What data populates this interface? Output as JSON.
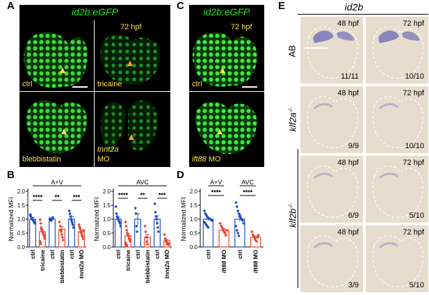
{
  "panels": {
    "A": {
      "label": "A",
      "header": "id2b:eGFP",
      "stage": "72 hpf",
      "tiles": [
        {
          "text": "ctrl",
          "italic": false
        },
        {
          "text": "tricaine",
          "italic": false
        },
        {
          "text": "blebbistatin",
          "italic": false
        },
        {
          "text": "tnnt2a",
          "italic": true,
          "suffix": "MO"
        }
      ]
    },
    "B": {
      "label": "B"
    },
    "C": {
      "label": "C",
      "header": "id2b:eGFP",
      "stage": "72 hpf",
      "tiles": [
        {
          "text": "ctrl",
          "italic": false
        },
        {
          "text": "ift88",
          "italic": true,
          "suffix": "MO"
        }
      ]
    },
    "D": {
      "label": "D"
    },
    "E": {
      "label": "E",
      "header": "id2b",
      "rows": [
        {
          "label": "AB",
          "cells": [
            {
              "stage": "48 hpf",
              "count": "11/11"
            },
            {
              "stage": "72 hpf",
              "count": "10/10"
            }
          ]
        },
        {
          "label": "klf2a",
          "sup": "-/-",
          "cells": [
            {
              "stage": "48 hpf",
              "count": "9/9"
            },
            {
              "stage": "72 hpf",
              "count": "10/10"
            }
          ]
        },
        {
          "label": "klf2b",
          "sup": "-/-",
          "cells": [
            {
              "stage": "48 hpf",
              "count": "6/9"
            },
            {
              "stage": "72 hpf",
              "count": "5/10"
            }
          ]
        },
        {
          "label": "",
          "cells": [
            {
              "stage": "48 hpf",
              "count": "3/9"
            },
            {
              "stage": "72 hpf",
              "count": "5/10"
            }
          ]
        }
      ]
    }
  },
  "chart_data": [
    {
      "type": "bar",
      "panel": "B",
      "title": "A+V",
      "ylabel": "Normalized MFI",
      "ylim": [
        0,
        2.0
      ],
      "yticks": [
        "0.0",
        "0.5",
        "1.0",
        "1.5",
        "2.0"
      ],
      "categories": [
        "ctrl",
        "tricaine",
        "ctrl",
        "blebbistatin",
        "ctrl",
        "tnnt2a MO"
      ],
      "values": [
        1.0,
        0.55,
        1.0,
        0.64,
        1.0,
        0.55
      ],
      "errors": [
        0.06,
        0.07,
        0.04,
        0.09,
        0.1,
        0.06
      ],
      "points": [
        [
          1.17,
          1.1,
          1.05,
          1.0,
          0.98,
          0.96,
          0.92,
          0.88,
          0.85,
          1.13
        ],
        [
          0.98,
          0.85,
          0.7,
          0.62,
          0.56,
          0.5,
          0.45,
          0.38,
          0.3,
          0.2,
          0.12,
          0.65
        ],
        [
          1.02,
          0.97,
          0.95,
          1.0,
          0.99,
          1.06
        ],
        [
          0.9,
          0.75,
          0.62,
          0.55,
          0.45,
          0.35,
          0.25
        ],
        [
          1.3,
          1.2,
          1.1,
          1.0,
          0.95,
          0.88,
          0.8,
          0.7
        ],
        [
          0.8,
          0.72,
          0.65,
          0.55,
          0.5,
          0.42,
          0.38,
          0.3,
          0.6
        ]
      ],
      "significance": [
        {
          "from": 0,
          "to": 1,
          "label": "****"
        },
        {
          "from": 2,
          "to": 3,
          "label": "**"
        },
        {
          "from": 4,
          "to": 5,
          "label": "***"
        }
      ],
      "colors": {
        "ctrl": "#1f4fbf",
        "treated": "#e8412f"
      }
    },
    {
      "type": "bar",
      "panel": "B",
      "title": "AVC",
      "ylabel": "Normalized MFI",
      "ylim": [
        0,
        2.0
      ],
      "yticks": [
        "0.0",
        "0.5",
        "1.0",
        "1.5",
        "2.0"
      ],
      "categories": [
        "ctrl",
        "tricaine",
        "ctrl",
        "blebbistatin",
        "ctrl",
        "tnnt2a MO"
      ],
      "values": [
        1.0,
        0.4,
        1.0,
        0.35,
        1.0,
        0.22
      ],
      "errors": [
        0.08,
        0.07,
        0.2,
        0.09,
        0.12,
        0.04
      ],
      "points": [
        [
          1.45,
          1.2,
          1.1,
          1.05,
          1.0,
          0.95,
          0.9,
          0.85,
          0.75
        ],
        [
          0.9,
          0.75,
          0.6,
          0.5,
          0.45,
          0.38,
          0.3,
          0.25,
          0.2,
          0.15,
          0.1,
          0.05
        ],
        [
          1.4,
          1.2,
          0.75,
          0.55
        ],
        [
          0.75,
          0.55,
          0.35,
          0.2,
          0.1
        ],
        [
          1.55,
          1.25,
          1.1,
          1.0,
          0.85,
          0.7,
          0.55
        ],
        [
          0.45,
          0.3,
          0.25,
          0.2,
          0.15,
          0.1,
          0.08,
          0.12
        ]
      ],
      "significance": [
        {
          "from": 0,
          "to": 1,
          "label": "****"
        },
        {
          "from": 2,
          "to": 3,
          "label": "**"
        },
        {
          "from": 4,
          "to": 5,
          "label": "***"
        }
      ],
      "colors": {
        "ctrl": "#1f4fbf",
        "treated": "#e8412f"
      }
    },
    {
      "type": "bar",
      "panel": "D",
      "ylabel": "Normalized MFI",
      "ylim": [
        0,
        2.0
      ],
      "yticks": [
        "0.0",
        "0.5",
        "1.0",
        "1.5",
        "2.0"
      ],
      "group_labels": [
        "A+V",
        "AVC"
      ],
      "categories": [
        "ctrl",
        "ift88 MO",
        "ctrl",
        "ift88 MO"
      ],
      "values": [
        1.0,
        0.6,
        1.0,
        0.35
      ],
      "errors": [
        0.05,
        0.06,
        0.08,
        0.05
      ],
      "points": [
        [
          1.3,
          1.2,
          1.15,
          1.1,
          1.05,
          1.02,
          1.0,
          0.98,
          0.95,
          0.9,
          0.85,
          0.8,
          0.75,
          0.7
        ],
        [
          0.85,
          0.75,
          0.7,
          0.62,
          0.55,
          0.5,
          0.42,
          0.6
        ],
        [
          1.6,
          1.45,
          1.3,
          1.2,
          1.1,
          1.05,
          1.0,
          0.95,
          0.85,
          0.75,
          0.6,
          0.5,
          0.4,
          1.15
        ],
        [
          0.55,
          0.45,
          0.38,
          0.3,
          0.25,
          0.2,
          0.35,
          0.42
        ]
      ],
      "significance": [
        {
          "from": 0,
          "to": 1,
          "label": "****"
        },
        {
          "from": 2,
          "to": 3,
          "label": "****"
        }
      ],
      "colors": {
        "ctrl": "#1f4fbf",
        "treated": "#e8412f"
      }
    }
  ]
}
